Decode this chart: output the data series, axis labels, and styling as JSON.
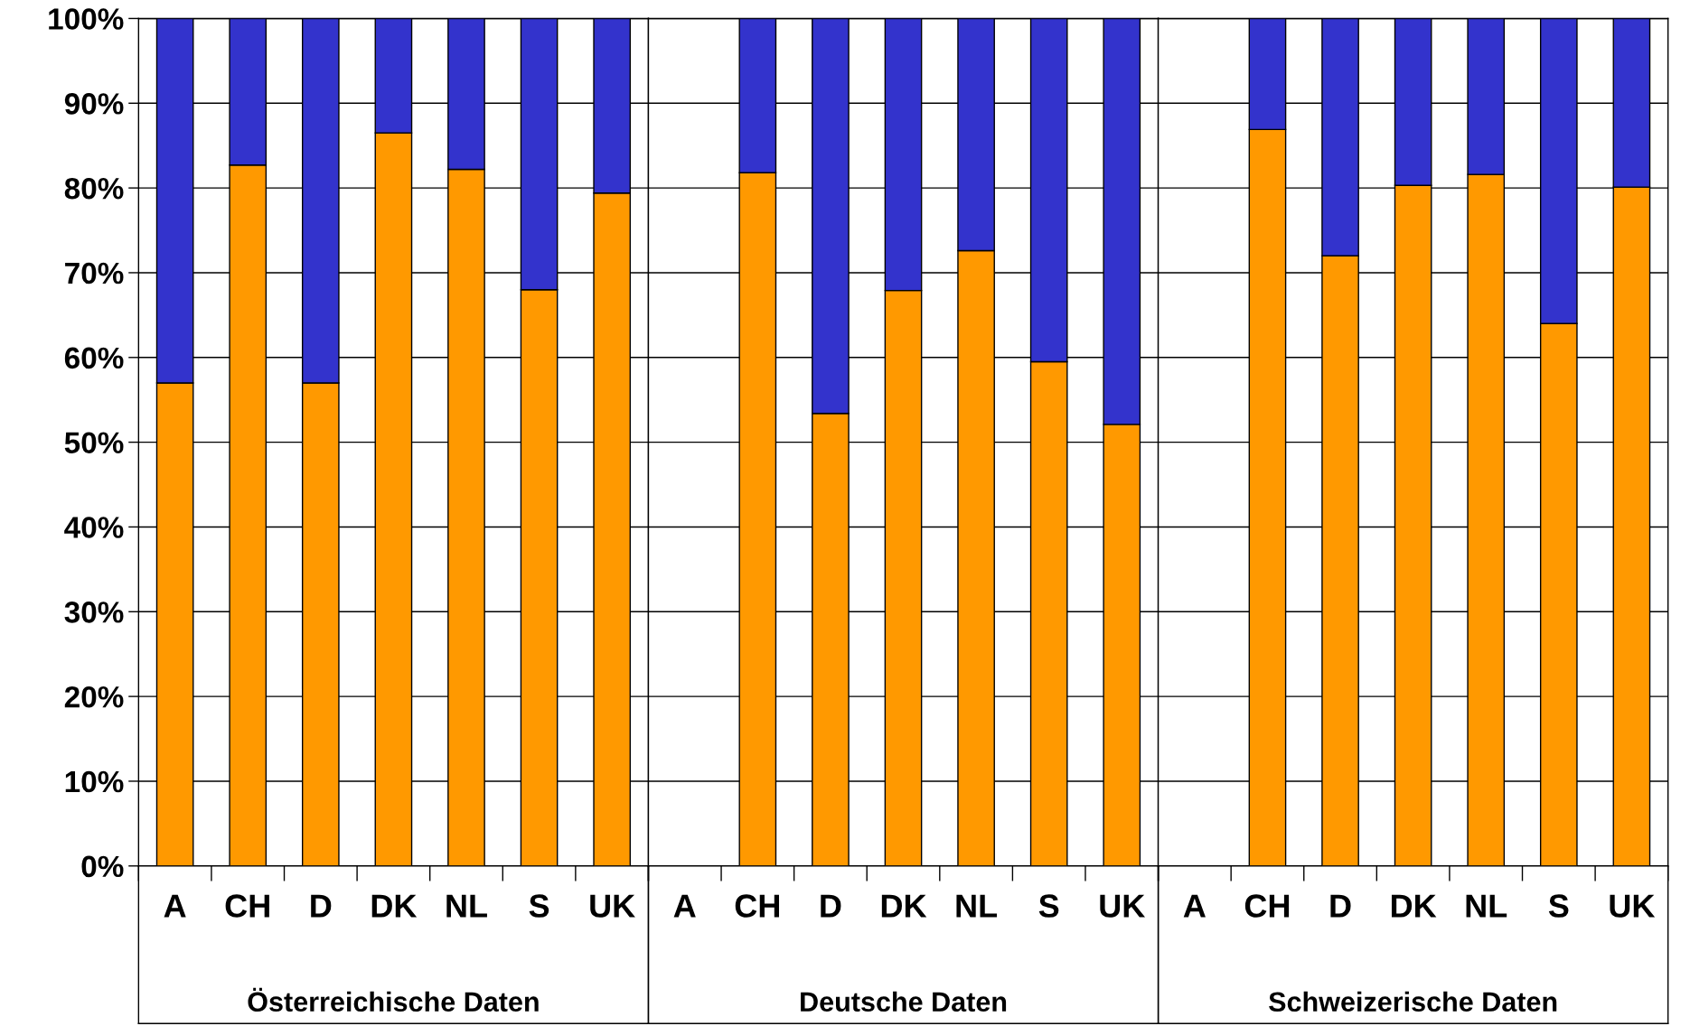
{
  "chart_data": [
    {
      "type": "bar",
      "stacked": true,
      "xlabel": "Österreichische Daten",
      "categories": [
        "A",
        "CH",
        "D",
        "DK",
        "NL",
        "S",
        "UK"
      ],
      "series": [
        {
          "color": "#ff9900",
          "values": [
            57,
            82.7,
            57,
            86.5,
            82.2,
            68,
            79.4
          ]
        },
        {
          "color": "#3333cc",
          "values": [
            43,
            17.3,
            43,
            13.5,
            17.8,
            32,
            20.6
          ]
        }
      ],
      "ylim": [
        0,
        100
      ],
      "yticks": [
        {
          "value": 0,
          "label": "0%"
        },
        {
          "value": 10,
          "label": "10%"
        },
        {
          "value": 20,
          "label": "20%"
        },
        {
          "value": 30,
          "label": "30%"
        },
        {
          "value": 40,
          "label": "40%"
        },
        {
          "value": 50,
          "label": "50%"
        },
        {
          "value": 60,
          "label": "60%"
        },
        {
          "value": 70,
          "label": "70%"
        },
        {
          "value": 80,
          "label": "80%"
        },
        {
          "value": 90,
          "label": "90%"
        },
        {
          "value": 100,
          "label": "100%"
        }
      ],
      "grid": "y"
    },
    {
      "type": "bar",
      "stacked": true,
      "xlabel": "Deutsche Daten",
      "categories": [
        "A",
        "CH",
        "D",
        "DK",
        "NL",
        "S",
        "UK"
      ],
      "series": [
        {
          "color": "#ff9900",
          "values": [
            null,
            81.8,
            53.4,
            67.9,
            72.6,
            59.5,
            52.1
          ]
        },
        {
          "color": "#3333cc",
          "values": [
            null,
            18.2,
            46.6,
            32.1,
            27.4,
            40.5,
            47.9
          ]
        }
      ],
      "ylim": [
        0,
        100
      ],
      "yticks": [
        {
          "value": 0,
          "label": null
        },
        {
          "value": 10,
          "label": null
        },
        {
          "value": 20,
          "label": null
        },
        {
          "value": 30,
          "label": null
        },
        {
          "value": 40,
          "label": null
        },
        {
          "value": 50,
          "label": null
        },
        {
          "value": 60,
          "label": null
        },
        {
          "value": 70,
          "label": null
        },
        {
          "value": 80,
          "label": null
        },
        {
          "value": 90,
          "label": null
        },
        {
          "value": 100,
          "label": null
        }
      ],
      "grid": "y",
      "tick_labels": "x"
    },
    {
      "type": "bar",
      "stacked": true,
      "xlabel": "Schweizerische Daten",
      "categories": [
        "A",
        "CH",
        "D",
        "DK",
        "NL",
        "S",
        "UK"
      ],
      "series": [
        {
          "color": "#ff9900",
          "values": [
            null,
            86.9,
            72,
            80.3,
            81.6,
            64,
            80.1
          ]
        },
        {
          "color": "#3333cc",
          "values": [
            null,
            13.1,
            28,
            19.7,
            18.4,
            36,
            19.9
          ]
        }
      ],
      "ylim": [
        0,
        100
      ],
      "yticks": [
        {
          "value": 0,
          "label": null
        },
        {
          "value": 10,
          "label": null
        },
        {
          "value": 20,
          "label": null
        },
        {
          "value": 30,
          "label": null
        },
        {
          "value": 40,
          "label": null
        },
        {
          "value": 50,
          "label": null
        },
        {
          "value": 60,
          "label": null
        },
        {
          "value": 70,
          "label": null
        },
        {
          "value": 80,
          "label": null
        },
        {
          "value": 90,
          "label": null
        },
        {
          "value": 100,
          "label": null
        }
      ],
      "grid": "y",
      "tick_labels": "x"
    }
  ]
}
